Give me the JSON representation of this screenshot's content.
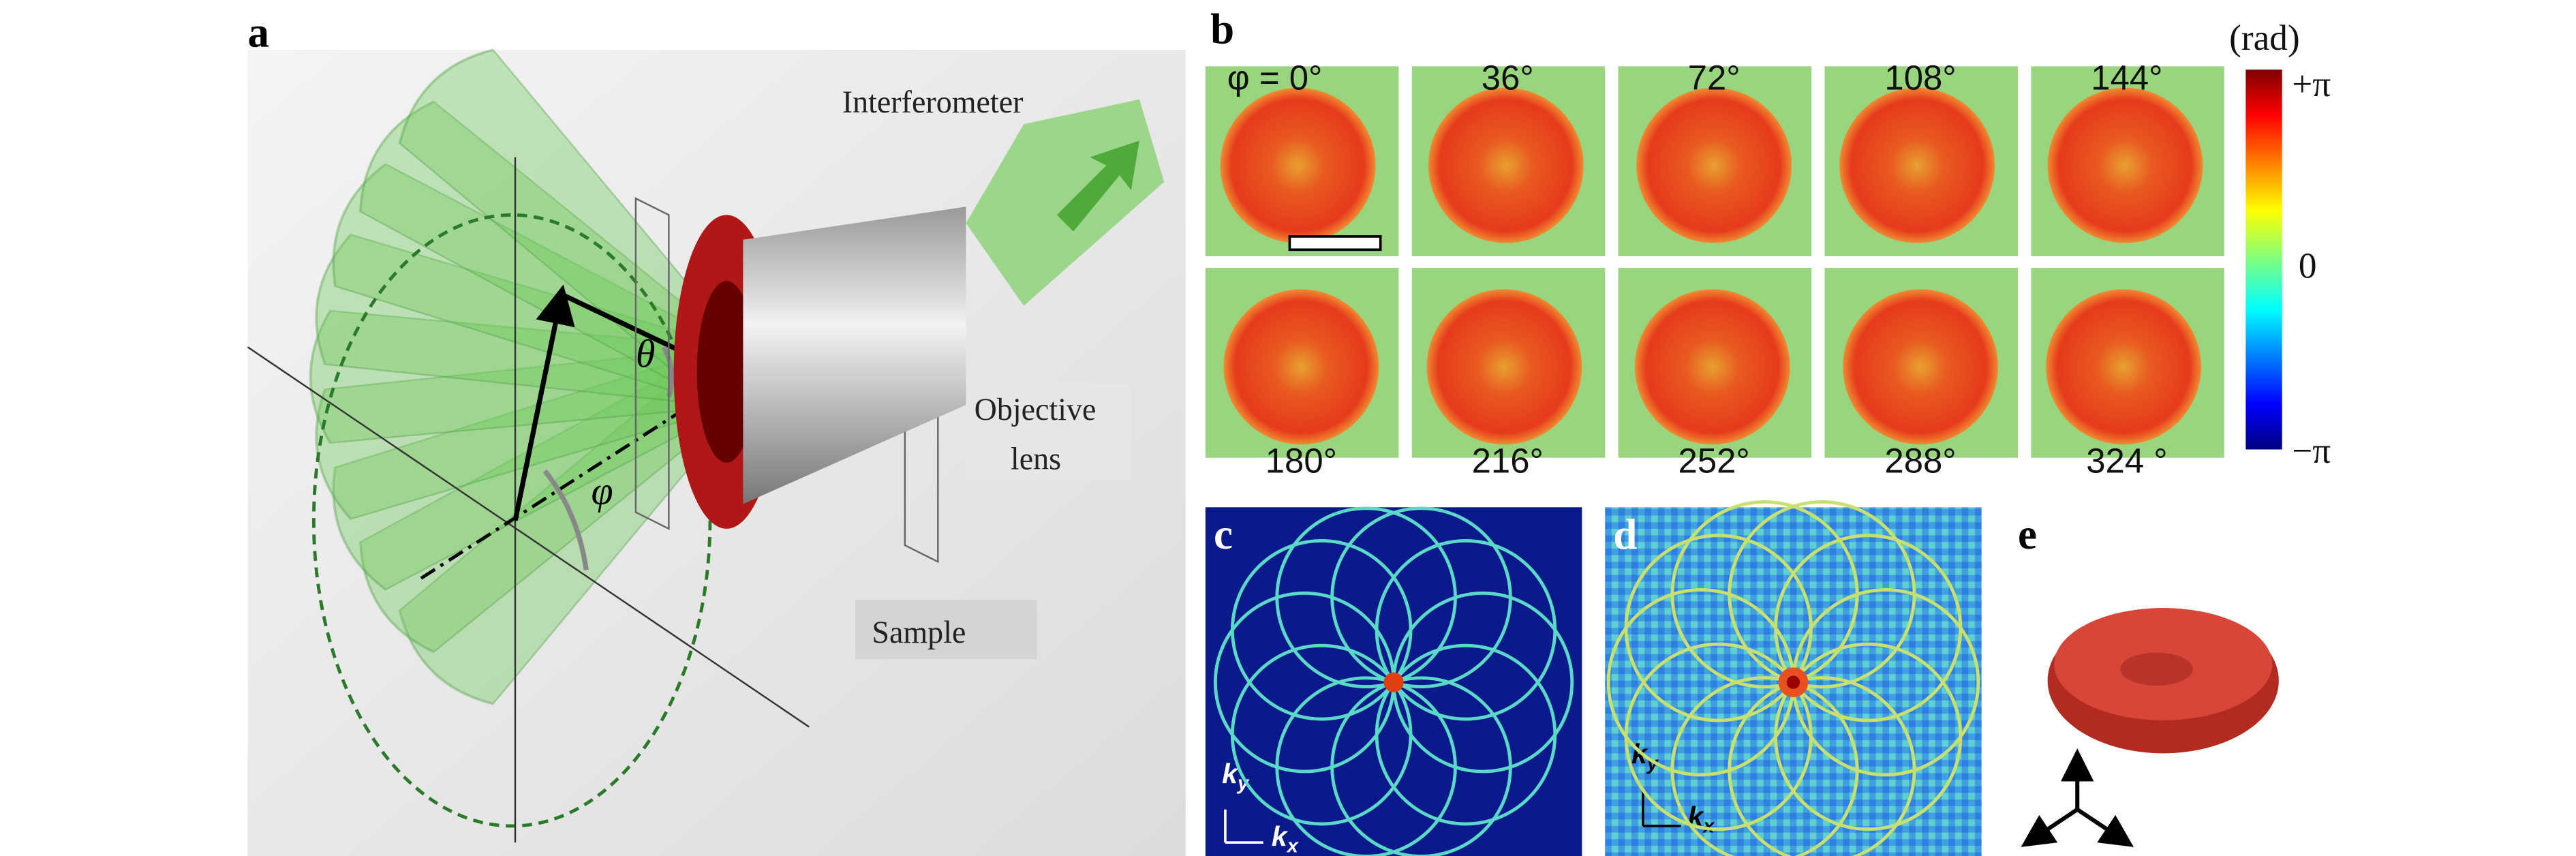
{
  "panel_a": {
    "label": "a",
    "interferometer": "Interferometer",
    "objective_lens": [
      "Objective",
      "lens"
    ],
    "sample": "Sample",
    "theta": "θ",
    "phi": "φ"
  },
  "panel_b": {
    "label": "b",
    "angles": [
      "φ = 0°",
      "36°",
      "72°",
      "108°",
      "144°",
      "180°",
      "216°",
      "252°",
      "288°",
      "324 °"
    ],
    "colorbar": {
      "unit": "(rad)",
      "ticks": [
        "+π",
        "0",
        "−π"
      ]
    }
  },
  "panel_c": {
    "label": "c",
    "ky": {
      "symbol": "k",
      "subscript": "y"
    },
    "kx": {
      "symbol": "k",
      "subscript": "x"
    }
  },
  "panel_d": {
    "label": "d",
    "ky": {
      "symbol": "k",
      "subscript": "y"
    },
    "kx": {
      "symbol": "k",
      "subscript": "x"
    }
  },
  "panel_e": {
    "label": "e"
  }
}
